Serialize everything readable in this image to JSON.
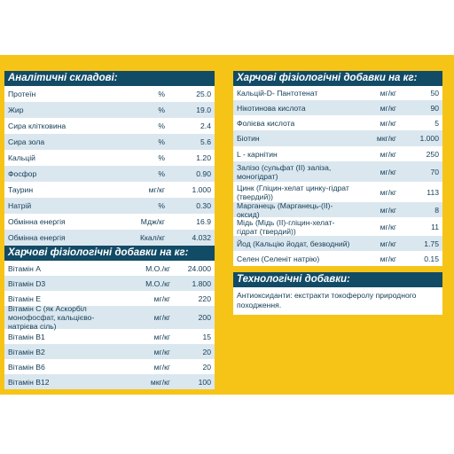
{
  "analytic": {
    "title": "Аналітичні складові:",
    "rows": [
      {
        "label": "Протеїн",
        "unit": "%",
        "value": "25.0"
      },
      {
        "label": "Жир",
        "unit": "%",
        "value": "19.0"
      },
      {
        "label": "Сира клітковина",
        "unit": "%",
        "value": "2.4"
      },
      {
        "label": "Сира зола",
        "unit": "%",
        "value": "5.6"
      },
      {
        "label": "Кальцій",
        "unit": "%",
        "value": "1.20"
      },
      {
        "label": "Фосфор",
        "unit": "%",
        "value": "0.90"
      },
      {
        "label": "Таурин",
        "unit": "мг/кг",
        "value": "1.000"
      },
      {
        "label": "Натрій",
        "unit": "%",
        "value": "0.30"
      },
      {
        "label": "Обмінна енергія",
        "unit": "Мдж/кг",
        "value": "16.9"
      },
      {
        "label": "Обмінна енергія",
        "unit": "Ккал/кг",
        "value": "4.032"
      }
    ]
  },
  "vitamins": {
    "title": "Харчові фізіологічні добавки на кг:",
    "rows": [
      {
        "label": "Вітамін А",
        "unit": "М.О./кг",
        "value": "24.000"
      },
      {
        "label": "Вітамін D3",
        "unit": "М.О./кг",
        "value": "1.800"
      },
      {
        "label": "Вітамін Е",
        "unit": "мг/кг",
        "value": "220"
      },
      {
        "label": "Вітамін С (як Аскорбіл монофосфат, кальцієво-натрієва сіль)",
        "unit": "мг/кг",
        "value": "200"
      },
      {
        "label": "Вітамін В1",
        "unit": "мг/кг",
        "value": "15"
      },
      {
        "label": "Вітамін В2",
        "unit": "мг/кг",
        "value": "20"
      },
      {
        "label": "Вітамін В6",
        "unit": "мг/кг",
        "value": "20"
      },
      {
        "label": "Вітамін В12",
        "unit": "мкг/кг",
        "value": "100"
      }
    ]
  },
  "minerals": {
    "title": "Харчові фізіологічні добавки на кг:",
    "rows": [
      {
        "label": "Кальцій-D- Пантотенат",
        "unit": "мг/кг",
        "value": "50"
      },
      {
        "label": "Нікотинова кислота",
        "unit": "мг/кг",
        "value": "90"
      },
      {
        "label": "Фолієва кислота",
        "unit": "мг/кг",
        "value": "5"
      },
      {
        "label": "Біотин",
        "unit": "мкг/кг",
        "value": "1.000"
      },
      {
        "label": "L - карнітин",
        "unit": "мг/кг",
        "value": "250"
      },
      {
        "label": "Залізо (сульфат (II) заліза, моногідрат)",
        "unit": "мг/кг",
        "value": "70"
      },
      {
        "label": "Цинк (Гліцин-хелат цинку-гідрат (твердий))",
        "unit": "мг/кг",
        "value": "113"
      },
      {
        "label": "Марганець (Марганець-(II)-оксид)",
        "unit": "мг/кг",
        "value": "8"
      },
      {
        "label": "Мідь (Мідь (II)-гліцин-хелат-гідрат (твердий))",
        "unit": "мг/кг",
        "value": "11"
      },
      {
        "label": "Йод (Кальцію йодат, безводний)",
        "unit": "мг/кг",
        "value": "1.75"
      },
      {
        "label": "Селен (Селеніт натрію)",
        "unit": "мг/кг",
        "value": "0.15"
      }
    ]
  },
  "tech": {
    "title": "Технологічні добавки:",
    "text": "Антиоксиданти: екстракти токоферолу природного походження."
  }
}
